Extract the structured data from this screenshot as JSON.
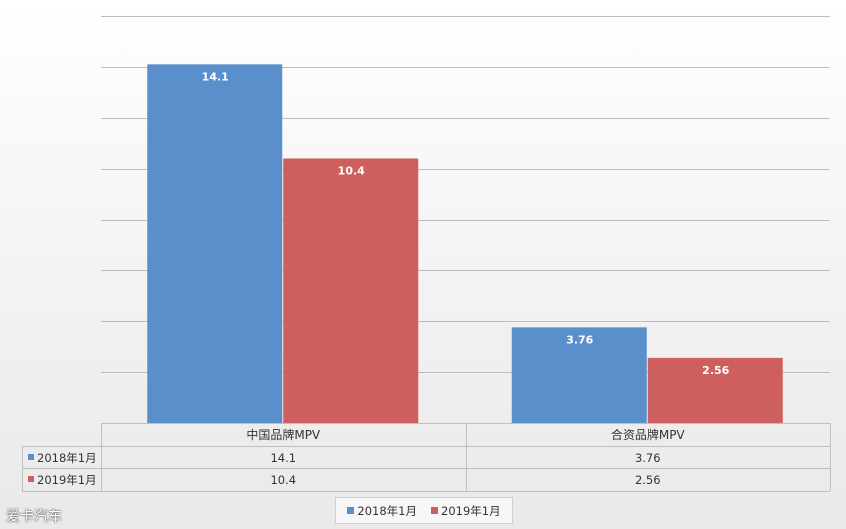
{
  "chart_data": {
    "type": "bar",
    "categories": [
      "中国品牌MPV",
      "合资品牌MPV"
    ],
    "series": [
      {
        "name": "2018年1月",
        "values": [
          14.1,
          3.76
        ],
        "color": "#5b8fcb"
      },
      {
        "name": "2019年1月",
        "values": [
          10.4,
          2.56
        ],
        "color": "#cd5f5e"
      }
    ],
    "data_labels": [
      [
        "14.1",
        "3.76"
      ],
      [
        "10.4",
        "2.56"
      ]
    ],
    "ylim": [
      0,
      16
    ],
    "grid": true,
    "legend": "bottom",
    "data_table": true
  },
  "legend": {
    "items": [
      {
        "label": "2018年1月",
        "color": "#5b8fcb"
      },
      {
        "label": "2019年1月",
        "color": "#cd5f5e"
      }
    ]
  },
  "watermark": "爱卡汽车"
}
